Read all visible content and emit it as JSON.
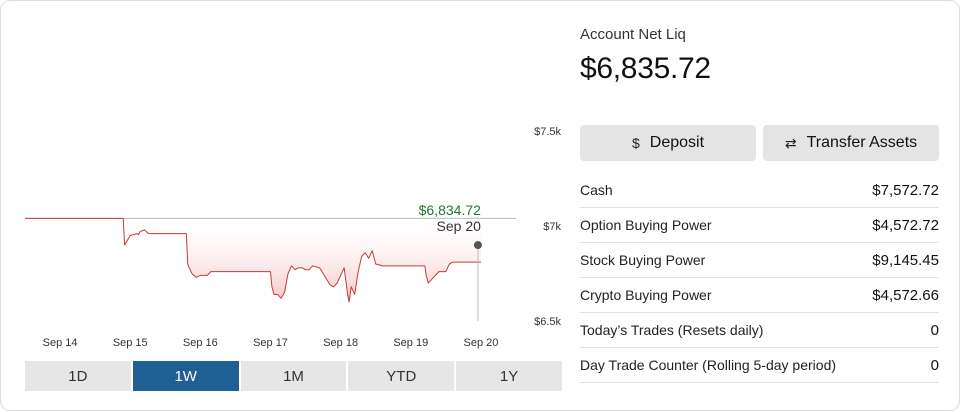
{
  "account": {
    "title": "Account Net Liq",
    "value": "$6,835.72"
  },
  "actions": {
    "deposit_icon": "$",
    "deposit_label": "Deposit",
    "transfer_icon": "⇄",
    "transfer_label": "Transfer Assets"
  },
  "balances": [
    {
      "label": "Cash",
      "value": "$7,572.72"
    },
    {
      "label": "Option Buying Power",
      "value": "$4,572.72"
    },
    {
      "label": "Stock Buying Power",
      "value": "$9,145.45"
    },
    {
      "label": "Crypto Buying Power",
      "value": "$4,572.66"
    },
    {
      "label": "Today’s Trades (Resets daily)",
      "value": "0"
    },
    {
      "label": "Day Trade Counter (Rolling 5-day period)",
      "value": "0"
    }
  ],
  "ranges": [
    "1D",
    "1W",
    "1M",
    "YTD",
    "1Y"
  ],
  "active_range": "1W",
  "chart_data": {
    "type": "area",
    "y_tick_labels": [
      "$7.5k",
      "$7k",
      "$6.5k"
    ],
    "y_ticks": [
      7500,
      7000,
      6500
    ],
    "ylim": [
      6500,
      7500
    ],
    "x_tick_labels": [
      "Sep 14",
      "Sep 15",
      "Sep 16",
      "Sep 17",
      "Sep 18",
      "Sep 19",
      "Sep 20"
    ],
    "xlim": [
      0,
      7
    ],
    "x_ticks": [
      0.5,
      1.5,
      2.5,
      3.5,
      4.5,
      5.5,
      6.5
    ],
    "baseline": 7040,
    "hover": {
      "value": "$6,834.72",
      "date": "Sep 20"
    },
    "colors": {
      "line": "#c43a3a",
      "fill": "#f6c6c6",
      "baseline": "#bbbbbb",
      "hover_value": "#1e7a2e"
    },
    "series": [
      {
        "x": [
          0.0,
          1.4,
          1.4,
          1.42,
          1.5,
          1.6,
          1.62,
          1.64,
          1.7,
          1.76,
          1.8,
          2.3,
          2.32,
          2.34,
          2.38,
          2.44,
          2.5,
          2.6,
          2.65,
          2.7,
          2.75,
          2.8,
          2.85,
          3.0,
          3.5,
          3.52,
          3.55,
          3.6,
          3.65,
          3.7,
          3.75,
          3.8,
          3.85,
          3.9,
          3.95,
          4.0,
          4.05,
          4.1,
          4.2,
          4.3,
          4.35,
          4.4,
          4.45,
          4.5,
          4.55,
          4.6,
          4.62,
          4.65,
          4.7,
          4.75,
          4.8,
          4.85,
          4.9,
          4.95,
          5.0,
          5.1,
          5.2,
          5.3,
          5.4,
          5.5,
          5.6,
          5.7,
          5.72,
          5.75,
          5.8,
          5.85,
          5.9,
          5.95,
          6.0,
          6.05,
          6.1,
          6.2,
          6.3,
          6.4,
          6.5
        ],
        "y": [
          7040,
          7040,
          7040,
          6900,
          6950,
          6960,
          6955,
          6970,
          6980,
          6960,
          6960,
          6960,
          6800,
          6780,
          6750,
          6730,
          6740,
          6740,
          6760,
          6760,
          6760,
          6760,
          6760,
          6760,
          6760,
          6680,
          6640,
          6640,
          6620,
          6650,
          6750,
          6790,
          6770,
          6780,
          6780,
          6770,
          6770,
          6790,
          6780,
          6720,
          6690,
          6680,
          6700,
          6740,
          6780,
          6640,
          6600,
          6680,
          6640,
          6760,
          6840,
          6860,
          6830,
          6870,
          6800,
          6790,
          6790,
          6790,
          6790,
          6790,
          6790,
          6790,
          6740,
          6700,
          6720,
          6740,
          6760,
          6760,
          6760,
          6800,
          6810,
          6810,
          6810,
          6810,
          6810
        ]
      }
    ]
  }
}
